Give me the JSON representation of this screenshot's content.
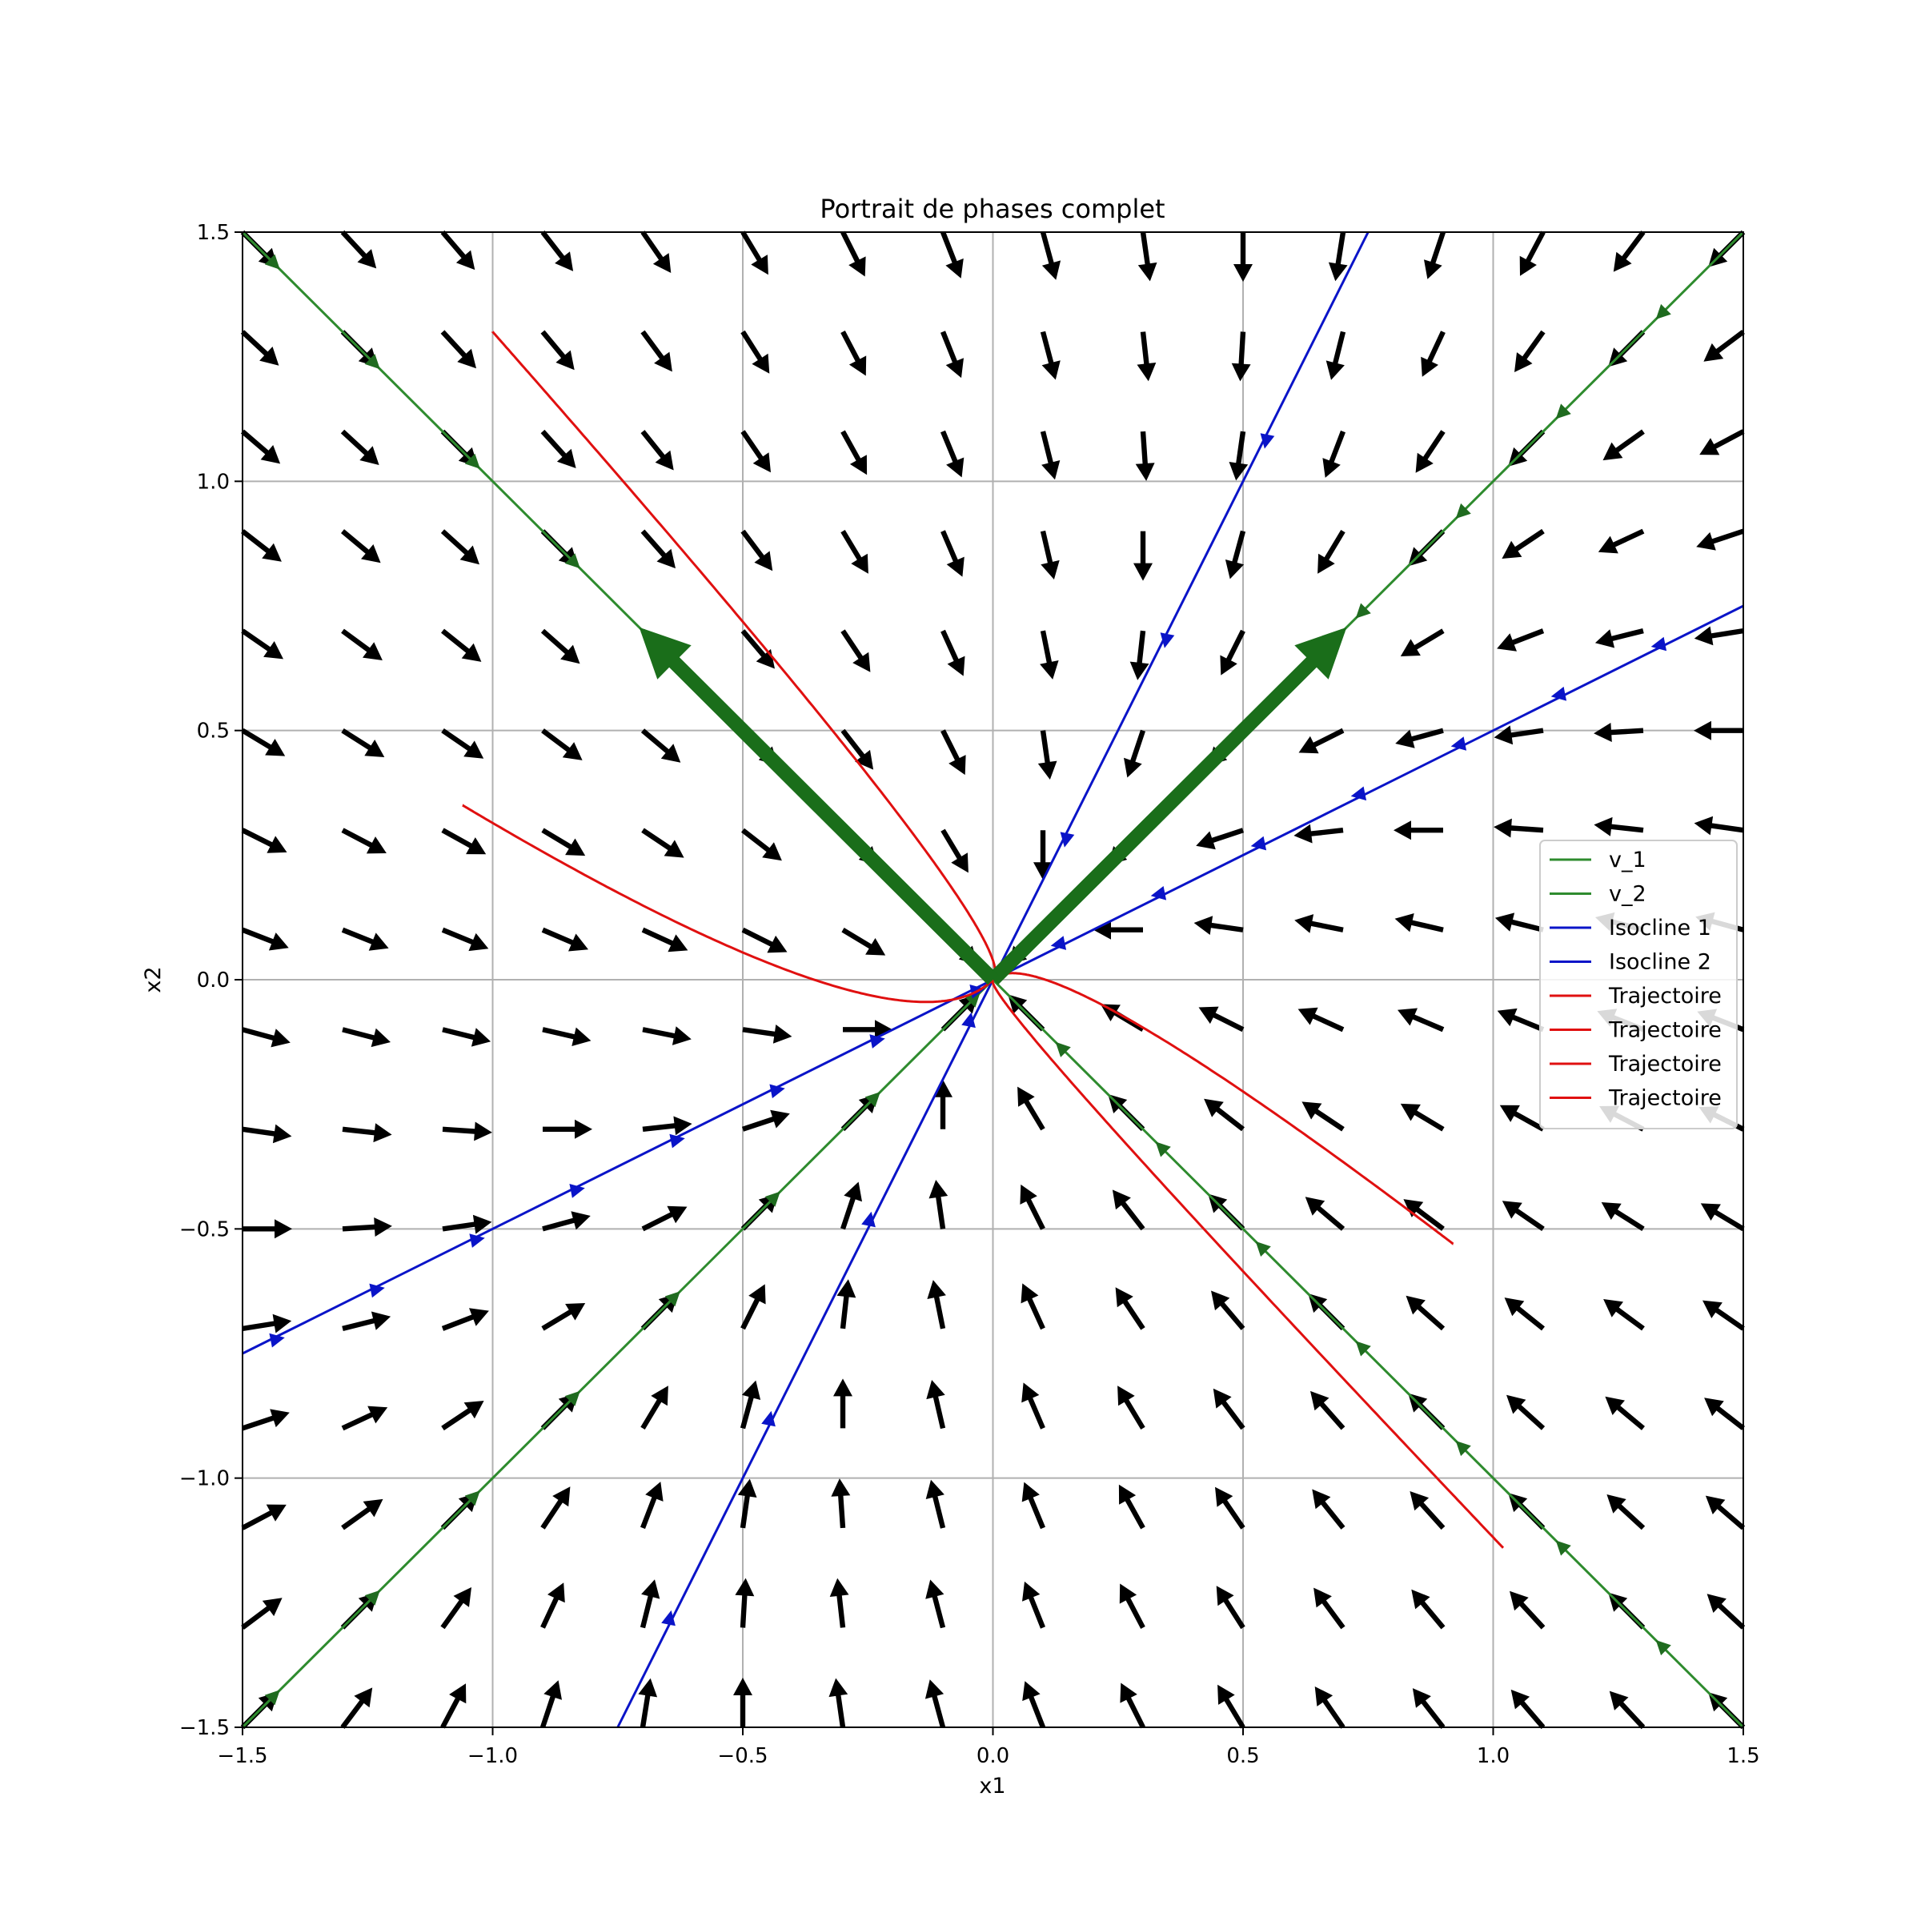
{
  "chart_data": {
    "type": "quiver",
    "title": "Portrait de phases complet",
    "xlabel": "x1",
    "ylabel": "x2",
    "xlim": [
      -1.5,
      1.5
    ],
    "ylim": [
      -1.5,
      1.5
    ],
    "grid": true,
    "xticks": [
      "−1.5",
      "−1.0",
      "−0.5",
      "0.0",
      "0.5",
      "1.0",
      "1.5"
    ],
    "xtick_values": [
      -1.5,
      -1.0,
      -0.5,
      0.0,
      0.5,
      1.0,
      1.5
    ],
    "yticks": [
      "−1.5",
      "−1.0",
      "−0.5",
      "0.0",
      "0.5",
      "1.0",
      "1.5"
    ],
    "ytick_values": [
      -1.5,
      -1.0,
      -0.5,
      0.0,
      0.5,
      1.0,
      1.5
    ],
    "vector_field": {
      "system": "x1' = -3*x1 + x2, x2' = x1 - 3*x2",
      "x_start": -1.5,
      "x_end": 1.5,
      "x_count": 16,
      "y_start": -1.5,
      "y_end": 1.5,
      "y_count": 16,
      "color": "#000000"
    },
    "eigenvectors": [
      {
        "name": "v_1",
        "direction": [
          0.7071,
          0.7071
        ],
        "color": "#1a6e1a",
        "line_color": "#2e8b2e"
      },
      {
        "name": "v_2",
        "direction": [
          -0.7071,
          0.7071
        ],
        "color": "#1a6e1a",
        "line_color": "#2e8b2e"
      }
    ],
    "series": [
      {
        "name": "v_1",
        "kind": "line",
        "color": "#2e8b2e",
        "slope": 1
      },
      {
        "name": "v_2",
        "kind": "line",
        "color": "#2e8b2e",
        "slope": -1
      },
      {
        "name": "Isocline 1",
        "kind": "line",
        "color": "#0a14c8",
        "slope": 2
      },
      {
        "name": "Isocline 2",
        "kind": "line",
        "color": "#0a14c8",
        "slope": 0.5
      },
      {
        "name": "Trajectoire",
        "kind": "trajectory",
        "color": "#e01010",
        "start": [
          -1.0,
          1.3
        ]
      },
      {
        "name": "Trajectoire",
        "kind": "trajectory",
        "color": "#e01010",
        "start": [
          -1.06,
          0.35
        ]
      },
      {
        "name": "Trajectoire",
        "kind": "trajectory",
        "color": "#e01010",
        "start": [
          0.92,
          -0.53
        ]
      },
      {
        "name": "Trajectoire",
        "kind": "trajectory",
        "color": "#e01010",
        "start": [
          1.02,
          -1.14
        ]
      }
    ],
    "legend_position": "center-right"
  }
}
